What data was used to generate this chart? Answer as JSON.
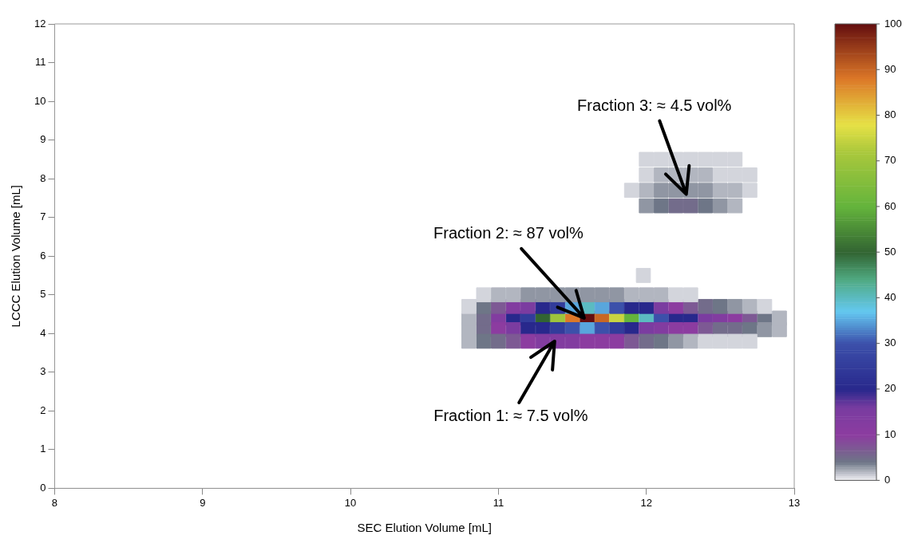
{
  "chart_data": {
    "type": "scatter",
    "xlabel": "SEC Elution Volume [mL]",
    "ylabel": "LCCC Elution Volume [mL]",
    "xlim": [
      8,
      13
    ],
    "xticks": [
      8,
      9,
      10,
      11,
      12,
      13
    ],
    "ylim": [
      0,
      12
    ],
    "yticks": [
      0,
      1,
      2,
      3,
      4,
      5,
      6,
      7,
      8,
      9,
      10,
      11,
      12
    ],
    "clim": [
      0,
      100
    ],
    "cticks": [
      0,
      10,
      20,
      30,
      40,
      50,
      60,
      70,
      80,
      90,
      100
    ],
    "grid": false,
    "legend": false,
    "marker": "square",
    "annotations": [
      {
        "text": "Fraction 1: ≈ 7.5 vol%",
        "x": 11.38,
        "y": 3.8
      },
      {
        "text": "Fraction 2: ≈ 87 vol%",
        "x": 11.58,
        "y": 4.4
      },
      {
        "text": "Fraction 3: ≈ 4.5 vol%",
        "x": 12.27,
        "y": 7.6
      }
    ],
    "series": [
      {
        "color": "#d3d5dc",
        "x": [
          10.9,
          12.2,
          12.3,
          11.98,
          12.0,
          12.1,
          12.2,
          12.3,
          12.4,
          12.5,
          12.6,
          12.0,
          12.5,
          12.6,
          12.7,
          11.9,
          12.7,
          10.8,
          12.8,
          12.4,
          12.5,
          12.6,
          12.7
        ],
        "values": [
          5.0,
          5.0,
          5.0,
          5.5,
          8.5,
          8.5,
          8.5,
          8.5,
          8.5,
          8.5,
          8.5,
          8.1,
          8.1,
          8.1,
          8.1,
          7.7,
          7.7,
          4.7,
          4.7,
          3.8,
          3.8,
          3.8,
          3.8
        ],
        "cvalues": [
          1,
          1,
          1,
          1,
          1,
          1,
          1,
          1,
          1,
          1,
          1,
          1,
          1,
          1,
          1,
          1,
          1,
          1,
          1,
          1,
          1,
          1,
          1
        ]
      },
      {
        "color": "#b2b6c0",
        "x": [
          11.0,
          11.1,
          11.9,
          12.0,
          12.1,
          12.1,
          12.2,
          12.3,
          12.4,
          12.0,
          12.5,
          12.6,
          12.6,
          12.7,
          10.8,
          12.3,
          10.8,
          12.9,
          10.8,
          12.9
        ],
        "values": [
          5.0,
          5.0,
          5.0,
          5.0,
          5.0,
          8.1,
          8.1,
          8.1,
          8.1,
          7.7,
          7.7,
          7.7,
          7.3,
          4.7,
          3.8,
          3.8,
          4.1,
          4.1,
          4.4,
          4.4
        ],
        "cvalues": [
          2,
          2,
          2,
          2,
          2,
          2,
          2,
          2,
          2,
          2,
          2,
          2,
          2,
          2,
          2,
          2,
          2,
          2,
          2,
          2
        ]
      },
      {
        "color": "#9096a3",
        "x": [
          11.2,
          11.3,
          11.4,
          11.5,
          11.6,
          11.7,
          11.8,
          12.1,
          12.2,
          12.3,
          12.4,
          12.0,
          12.5,
          12.6,
          12.2,
          12.8
        ],
        "values": [
          5.0,
          5.0,
          5.0,
          5.0,
          5.0,
          5.0,
          5.0,
          7.7,
          7.7,
          7.7,
          7.7,
          7.3,
          7.3,
          4.7,
          3.8,
          4.1
        ],
        "cvalues": [
          3,
          3,
          3,
          3,
          3,
          3,
          3,
          3,
          3,
          3,
          3,
          3,
          3,
          3,
          3,
          3
        ]
      },
      {
        "color": "#6e7687",
        "x": [
          12.1,
          12.4,
          10.9,
          12.5,
          10.9,
          12.1,
          12.7,
          12.8
        ],
        "values": [
          7.3,
          7.3,
          4.7,
          4.7,
          3.8,
          3.8,
          4.1,
          4.4
        ],
        "cvalues": [
          4,
          4,
          4,
          4,
          4,
          4,
          4,
          4
        ]
      },
      {
        "color": "#736c8b",
        "x": [
          12.2,
          12.3,
          12.4,
          11.0,
          12.0,
          10.9,
          12.5,
          12.6,
          10.9
        ],
        "values": [
          7.3,
          7.3,
          4.7,
          3.8,
          3.8,
          4.1,
          4.1,
          4.1,
          4.4
        ],
        "cvalues": [
          5,
          5,
          5,
          5,
          5,
          5,
          5,
          5,
          5
        ]
      },
      {
        "color": "#7d5994",
        "x": [
          11.0,
          12.3,
          11.1,
          11.9,
          12.4,
          12.7
        ],
        "values": [
          4.7,
          4.7,
          3.8,
          3.8,
          4.1,
          4.4
        ],
        "cvalues": [
          7,
          7,
          7,
          7,
          7,
          7
        ]
      },
      {
        "color": "#8c3ca0",
        "x": [
          12.2,
          11.2,
          11.6,
          11.7,
          11.8,
          11.0,
          12.2,
          12.3,
          12.6
        ],
        "values": [
          4.7,
          3.8,
          3.8,
          3.8,
          3.8,
          4.1,
          4.1,
          4.1,
          4.4
        ],
        "cvalues": [
          10,
          10,
          10,
          10,
          10,
          10,
          10,
          10,
          10
        ]
      },
      {
        "color": "#823ca0",
        "x": [
          11.1,
          11.3,
          11.4,
          11.5,
          12.1,
          11.0,
          12.5
        ],
        "values": [
          4.7,
          3.8,
          3.8,
          3.8,
          4.1,
          4.4,
          4.4
        ],
        "cvalues": [
          13,
          13,
          13,
          13,
          13,
          13,
          13
        ]
      },
      {
        "color": "#7b3ca0",
        "x": [
          11.2,
          12.1,
          11.1,
          12.0,
          12.4
        ],
        "values": [
          4.7,
          4.7,
          4.1,
          4.1,
          4.4
        ],
        "cvalues": [
          15,
          15,
          15,
          15,
          15
        ]
      },
      {
        "color": "#28288c",
        "x": [
          11.3,
          11.9,
          12.0,
          11.2,
          11.3,
          11.9,
          11.1,
          12.2,
          12.3
        ],
        "values": [
          4.7,
          4.7,
          4.7,
          4.1,
          4.1,
          4.1,
          4.4,
          4.4,
          4.4
        ],
        "cvalues": [
          20,
          20,
          20,
          20,
          20,
          20,
          20,
          20,
          20
        ]
      },
      {
        "color": "#323c9b",
        "x": [
          11.4,
          11.4,
          11.8,
          11.2
        ],
        "values": [
          4.7,
          4.1,
          4.1,
          4.4
        ],
        "cvalues": [
          25,
          25,
          25,
          25
        ]
      },
      {
        "color": "#3c50aa",
        "x": [
          11.8,
          11.5,
          11.7,
          12.1
        ],
        "values": [
          4.7,
          4.1,
          4.1,
          4.4
        ],
        "cvalues": [
          30,
          30,
          30,
          30
        ]
      },
      {
        "color": "#59a6dc",
        "x": [
          11.5,
          11.7,
          11.6
        ],
        "values": [
          4.7,
          4.7,
          4.1
        ],
        "cvalues": [
          35,
          35,
          35
        ]
      },
      {
        "color": "#5bbbc1",
        "x": [
          11.6,
          12.0
        ],
        "values": [
          4.7,
          4.4
        ],
        "cvalues": [
          40,
          40
        ]
      },
      {
        "color": "#326432",
        "x": [
          11.3
        ],
        "values": [
          4.4
        ],
        "cvalues": [
          50
        ]
      },
      {
        "color": "#64b43c",
        "x": [
          11.9
        ],
        "values": [
          4.4
        ],
        "cvalues": [
          60
        ]
      },
      {
        "color": "#9ec53c",
        "x": [
          11.4
        ],
        "values": [
          4.4
        ],
        "cvalues": [
          70
        ]
      },
      {
        "color": "#c8d541",
        "x": [
          11.8
        ],
        "values": [
          4.4
        ],
        "cvalues": [
          75
        ]
      },
      {
        "color": "#dc7828",
        "x": [
          11.5
        ],
        "values": [
          4.4
        ],
        "cvalues": [
          88
        ]
      },
      {
        "color": "#c86726",
        "x": [
          11.7
        ],
        "values": [
          4.4
        ],
        "cvalues": [
          90
        ]
      },
      {
        "color": "#640f0f",
        "x": [
          11.6
        ],
        "values": [
          4.4
        ],
        "cvalues": [
          100
        ]
      }
    ]
  }
}
